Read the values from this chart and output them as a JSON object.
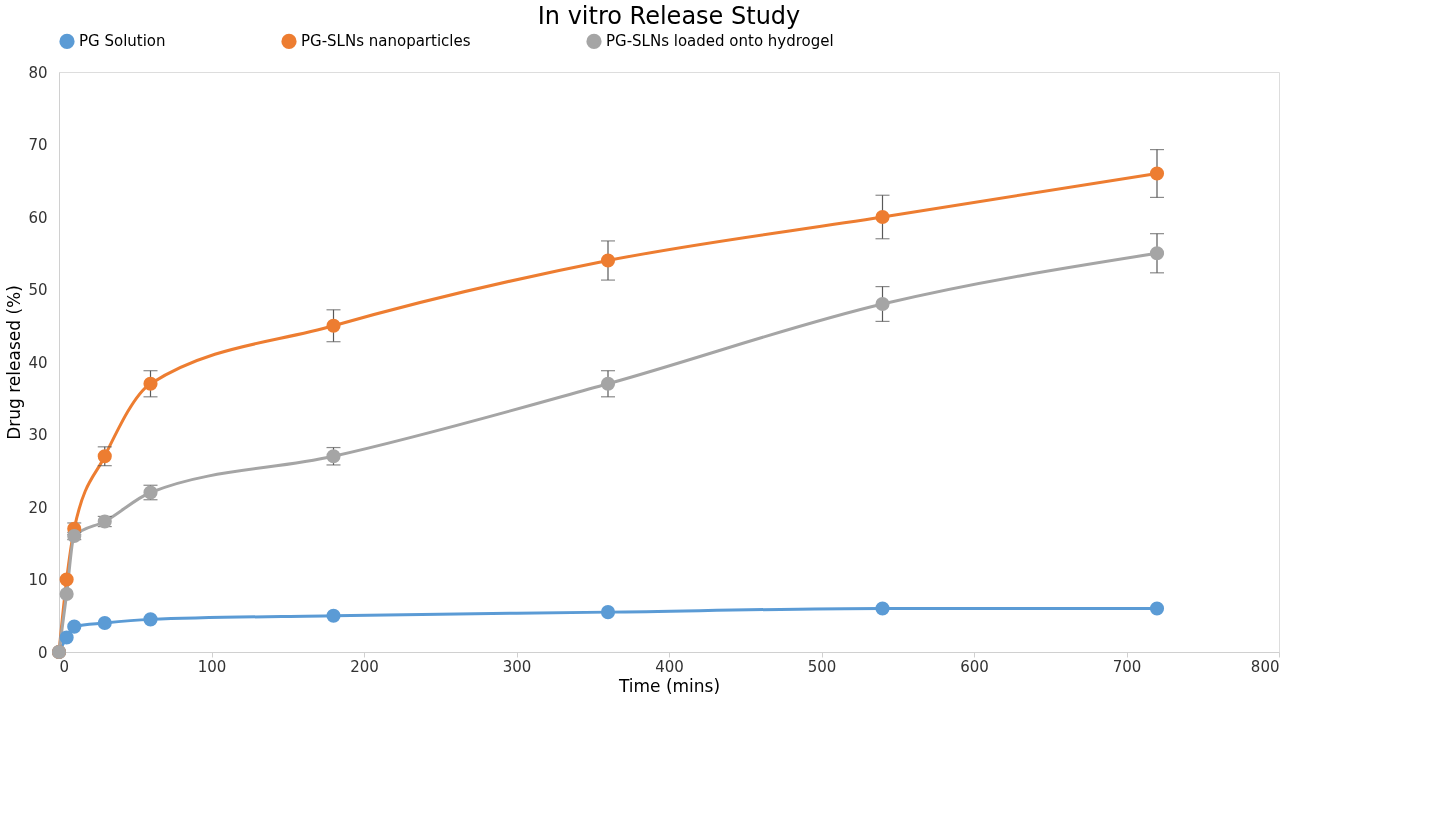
{
  "chart_data": {
    "type": "line",
    "title": "In vitro Release Study",
    "xlabel": "Time (mins)",
    "ylabel": "Drug released (%)",
    "x": [
      0,
      5,
      10,
      30,
      60,
      180,
      360,
      540,
      720
    ],
    "series": [
      {
        "name": "PG Solution",
        "color": "#5b9bd5",
        "values": [
          0,
          2,
          3.5,
          4,
          4.5,
          5,
          5.5,
          6,
          6
        ]
      },
      {
        "name": "PG-SLNs nanoparticles",
        "color": "#ed7d31",
        "values": [
          0,
          10,
          17,
          27,
          37,
          45,
          54,
          60,
          66
        ],
        "errors": [
          null,
          null,
          0.8,
          1.3,
          1.8,
          2.2,
          2.7,
          3,
          3.3
        ]
      },
      {
        "name": "PG-SLNs loaded onto hydrogel",
        "color": "#a5a5a5",
        "values": [
          0,
          8,
          16,
          18,
          22,
          27,
          37,
          48,
          55
        ],
        "errors": [
          null,
          null,
          0.5,
          0.7,
          1,
          1.2,
          1.8,
          2.4,
          2.7
        ]
      }
    ],
    "xlim": [
      0,
      800
    ],
    "xticks": [
      0,
      100,
      200,
      300,
      400,
      500,
      600,
      700,
      800
    ],
    "ylim": [
      0,
      80
    ],
    "yticks": [
      0,
      10,
      20,
      30,
      40,
      50,
      60,
      70,
      80
    ],
    "grid": false,
    "legend": "top",
    "marker": "circle",
    "line_style": "solid"
  }
}
